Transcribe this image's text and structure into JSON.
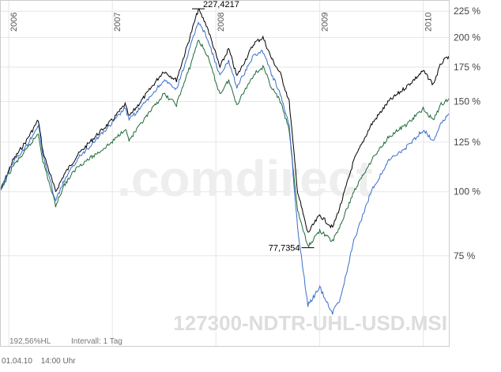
{
  "chart_data": {
    "type": "line",
    "watermark": ".comdirect",
    "instrument_label": "127300-NDTR-UHL-USD.MSI",
    "x_tick_labels": [
      "2006",
      "2007",
      "2008",
      "2009",
      "2010"
    ],
    "x_ticks": [
      "2006-01-01",
      "2007-01-01",
      "2008-01-01",
      "2009-01-01",
      "2010-01-01"
    ],
    "x_range": [
      "2005-12-01",
      "2010-04-01"
    ],
    "y_scale": "log",
    "y_range": [
      50,
      230
    ],
    "y_ticks": [
      75,
      100,
      125,
      150,
      175,
      200,
      225
    ],
    "y_tick_labels": [
      "75 %",
      "100 %",
      "125 %",
      "150 %",
      "175 %",
      "200 %",
      "225 %"
    ],
    "grid": true,
    "annotations": [
      {
        "label": "227,4217",
        "x": "2007-10-31",
        "y": 227.4217
      },
      {
        "label": "77,7354",
        "x": "2008-11-20",
        "y": 77.7354
      }
    ],
    "series": [
      {
        "color": "#000000",
        "points": [
          [
            "2005-12-01",
            100
          ],
          [
            "2006-01-15",
            115
          ],
          [
            "2006-03-01",
            125
          ],
          [
            "2006-04-15",
            138
          ],
          [
            "2006-05-01",
            120
          ],
          [
            "2006-06-15",
            100
          ],
          [
            "2006-07-15",
            108
          ],
          [
            "2006-09-01",
            118
          ],
          [
            "2006-11-01",
            128
          ],
          [
            "2007-01-01",
            138
          ],
          [
            "2007-02-15",
            148
          ],
          [
            "2007-03-01",
            140
          ],
          [
            "2007-05-01",
            155
          ],
          [
            "2007-07-01",
            172
          ],
          [
            "2007-08-15",
            165
          ],
          [
            "2007-10-01",
            200
          ],
          [
            "2007-10-31",
            227
          ],
          [
            "2007-12-01",
            210
          ],
          [
            "2008-01-15",
            175
          ],
          [
            "2008-02-15",
            190
          ],
          [
            "2008-03-15",
            168
          ],
          [
            "2008-05-15",
            195
          ],
          [
            "2008-06-15",
            200
          ],
          [
            "2008-07-15",
            182
          ],
          [
            "2008-08-15",
            170
          ],
          [
            "2008-09-15",
            150
          ],
          [
            "2008-10-15",
            100
          ],
          [
            "2008-11-20",
            83
          ],
          [
            "2009-01-01",
            90
          ],
          [
            "2009-02-15",
            85
          ],
          [
            "2009-03-15",
            94
          ],
          [
            "2009-05-01",
            115
          ],
          [
            "2009-07-01",
            135
          ],
          [
            "2009-09-01",
            150
          ],
          [
            "2009-11-01",
            160
          ],
          [
            "2010-01-01",
            172
          ],
          [
            "2010-02-05",
            162
          ],
          [
            "2010-03-05",
            178
          ],
          [
            "2010-04-01",
            184
          ]
        ]
      },
      {
        "color": "#1f6b3a",
        "points": [
          [
            "2005-12-01",
            100
          ],
          [
            "2006-01-15",
            112
          ],
          [
            "2006-03-01",
            120
          ],
          [
            "2006-04-15",
            130
          ],
          [
            "2006-05-01",
            115
          ],
          [
            "2006-06-15",
            94
          ],
          [
            "2006-07-15",
            103
          ],
          [
            "2006-09-01",
            112
          ],
          [
            "2006-11-01",
            118
          ],
          [
            "2007-01-01",
            125
          ],
          [
            "2007-02-15",
            133
          ],
          [
            "2007-03-01",
            126
          ],
          [
            "2007-05-01",
            140
          ],
          [
            "2007-07-01",
            155
          ],
          [
            "2007-08-15",
            148
          ],
          [
            "2007-10-01",
            175
          ],
          [
            "2007-10-31",
            198
          ],
          [
            "2007-12-01",
            185
          ],
          [
            "2008-01-15",
            155
          ],
          [
            "2008-02-15",
            165
          ],
          [
            "2008-03-15",
            148
          ],
          [
            "2008-05-15",
            170
          ],
          [
            "2008-06-15",
            175
          ],
          [
            "2008-07-15",
            160
          ],
          [
            "2008-08-15",
            150
          ],
          [
            "2008-09-15",
            132
          ],
          [
            "2008-10-15",
            92
          ],
          [
            "2008-11-20",
            78
          ],
          [
            "2009-01-01",
            84
          ],
          [
            "2009-02-15",
            80
          ],
          [
            "2009-03-15",
            86
          ],
          [
            "2009-05-01",
            100
          ],
          [
            "2009-07-01",
            115
          ],
          [
            "2009-09-01",
            128
          ],
          [
            "2009-11-01",
            135
          ],
          [
            "2010-01-01",
            145
          ],
          [
            "2010-02-05",
            138
          ],
          [
            "2010-03-05",
            148
          ],
          [
            "2010-04-01",
            152
          ]
        ]
      },
      {
        "color": "#3a6fc9",
        "points": [
          [
            "2005-12-01",
            100
          ],
          [
            "2006-01-15",
            114
          ],
          [
            "2006-03-01",
            122
          ],
          [
            "2006-04-15",
            135
          ],
          [
            "2006-05-01",
            118
          ],
          [
            "2006-06-15",
            96
          ],
          [
            "2006-07-15",
            105
          ],
          [
            "2006-09-01",
            116
          ],
          [
            "2006-11-01",
            126
          ],
          [
            "2007-01-01",
            136
          ],
          [
            "2007-02-15",
            146
          ],
          [
            "2007-03-01",
            138
          ],
          [
            "2007-05-01",
            150
          ],
          [
            "2007-07-01",
            165
          ],
          [
            "2007-08-15",
            158
          ],
          [
            "2007-10-01",
            190
          ],
          [
            "2007-10-31",
            215
          ],
          [
            "2007-12-01",
            200
          ],
          [
            "2008-01-15",
            168
          ],
          [
            "2008-02-15",
            180
          ],
          [
            "2008-03-15",
            160
          ],
          [
            "2008-05-15",
            185
          ],
          [
            "2008-06-15",
            188
          ],
          [
            "2008-07-15",
            170
          ],
          [
            "2008-08-15",
            155
          ],
          [
            "2008-09-15",
            135
          ],
          [
            "2008-10-15",
            85
          ],
          [
            "2008-11-20",
            60
          ],
          [
            "2009-01-01",
            65
          ],
          [
            "2009-02-15",
            58
          ],
          [
            "2009-03-15",
            62
          ],
          [
            "2009-05-01",
            80
          ],
          [
            "2009-07-01",
            100
          ],
          [
            "2009-09-01",
            115
          ],
          [
            "2009-11-01",
            122
          ],
          [
            "2010-01-01",
            132
          ],
          [
            "2010-02-05",
            126
          ],
          [
            "2010-03-05",
            136
          ],
          [
            "2010-04-01",
            142
          ]
        ]
      }
    ]
  },
  "footer": {
    "hl": "192,56%HL",
    "interval": "Intervall: 1 Tag",
    "date": "01.04.10",
    "time": "14:00 Uhr"
  }
}
